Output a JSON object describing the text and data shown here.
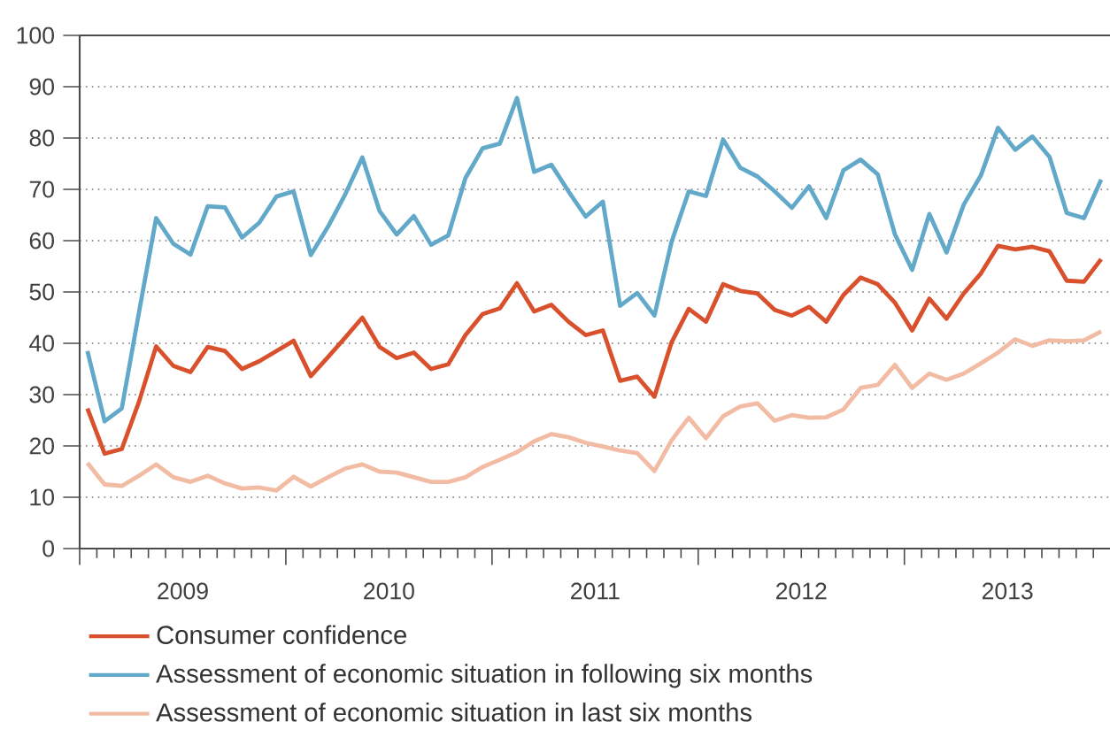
{
  "chart_data": {
    "type": "line",
    "x": [
      "2009-01-15",
      "2009-02-15",
      "2009-03-15",
      "2009-04-15",
      "2009-05-15",
      "2009-06-15",
      "2009-07-15",
      "2009-08-15",
      "2009-09-15",
      "2009-10-15",
      "2009-11-15",
      "2009-12-15",
      "2010-01-15",
      "2010-02-15",
      "2010-03-15",
      "2010-04-15",
      "2010-05-15",
      "2010-06-15",
      "2010-07-15",
      "2010-08-15",
      "2010-09-15",
      "2010-10-15",
      "2010-11-15",
      "2010-12-15",
      "2011-01-15",
      "2011-02-15",
      "2011-03-15",
      "2011-04-15",
      "2011-05-15",
      "2011-06-15",
      "2011-07-15",
      "2011-08-15",
      "2011-09-15",
      "2011-10-15",
      "2011-11-15",
      "2011-12-15",
      "2012-01-15",
      "2012-02-15",
      "2012-03-15",
      "2012-04-15",
      "2012-05-15",
      "2012-06-15",
      "2012-07-15",
      "2012-08-15",
      "2012-09-15",
      "2012-10-15",
      "2012-11-15",
      "2012-12-15",
      "2013-01-15",
      "2013-02-15",
      "2013-03-15",
      "2013-04-15",
      "2013-05-15",
      "2013-06-15",
      "2013-07-15",
      "2013-08-15",
      "2013-09-15",
      "2013-10-15",
      "2013-11-15",
      "2013-12-15"
    ],
    "series": [
      {
        "name": "Consumer confidence",
        "color": "#d9502c",
        "values": [
          27.3,
          18.5,
          19.4,
          28.6,
          39.4,
          35.6,
          34.4,
          39.3,
          38.5,
          35,
          36.5,
          38.5,
          40.5,
          33.6,
          37.3,
          41.1,
          45,
          39.3,
          37.1,
          38.2,
          35,
          35.9,
          41.6,
          45.7,
          46.8,
          51.7,
          46.2,
          47.5,
          44.2,
          41.6,
          42.5,
          32.7,
          33.5,
          29.6,
          40.2,
          46.7,
          44.2,
          51.5,
          50.2,
          49.7,
          46.5,
          45.4,
          47.1,
          44.2,
          49.4,
          52.8,
          51.5,
          47.9,
          42.5,
          48.7,
          44.8,
          49.7,
          53.6,
          59,
          58.3,
          58.8,
          57.9,
          52.2,
          52,
          56.4
        ]
      },
      {
        "name": "Assessment of economic situation in following six months",
        "color": "#62a9c9",
        "values": [
          38.5,
          24.8,
          27.3,
          46,
          64.4,
          59.4,
          57.3,
          66.7,
          66.5,
          60.6,
          63.5,
          68.6,
          69.6,
          57.2,
          62.7,
          69,
          76.2,
          65.8,
          61.2,
          64.8,
          59.2,
          61,
          72.2,
          78,
          78.9,
          87.8,
          73.4,
          74.8,
          69.6,
          64.7,
          67.6,
          47.3,
          49.8,
          45.4,
          59.8,
          69.6,
          68.7,
          79.7,
          74.2,
          72.5,
          69.6,
          66.4,
          70.6,
          64.4,
          73.7,
          75.8,
          72.9,
          61.2,
          54.3,
          65.2,
          57.7,
          67,
          72.7,
          82,
          77.7,
          80.3,
          76.3,
          65.4,
          64.4,
          71.9
        ]
      },
      {
        "name": "Assessment of economic situation in last six months",
        "color": "#f2bba3",
        "values": [
          16.7,
          12.5,
          12.2,
          14.2,
          16.4,
          13.9,
          13,
          14.2,
          12.7,
          11.7,
          11.9,
          11.3,
          14,
          12.1,
          13.9,
          15.6,
          16.4,
          15,
          14.8,
          13.9,
          13,
          13,
          13.9,
          15.9,
          17.3,
          18.8,
          20.9,
          22.3,
          21.7,
          20.6,
          19.9,
          19.1,
          18.6,
          15.1,
          21.1,
          25.5,
          21.5,
          25.8,
          27.7,
          28.3,
          24.9,
          26,
          25.5,
          25.6,
          27.1,
          31.3,
          31.9,
          35.8,
          31.3,
          34.1,
          32.9,
          34.1,
          36.1,
          38.2,
          40.8,
          39.5,
          40.6,
          40.4,
          40.6,
          42.3
        ]
      }
    ],
    "xlim": [
      "2009-01-01",
      "2013-12-31"
    ],
    "xticks": [
      {
        "value": "2009-01-01",
        "label": null
      },
      {
        "value": "2009-07-01",
        "label": "2009"
      },
      {
        "value": "2010-01-01",
        "label": null
      },
      {
        "value": "2010-07-01",
        "label": "2010"
      },
      {
        "value": "2011-01-01",
        "label": null
      },
      {
        "value": "2011-07-01",
        "label": "2011"
      },
      {
        "value": "2012-01-01",
        "label": null
      },
      {
        "value": "2012-07-01",
        "label": "2012"
      },
      {
        "value": "2013-01-01",
        "label": null
      },
      {
        "value": "2013-07-01",
        "label": "2013"
      }
    ],
    "ylim": [
      0,
      100
    ],
    "yticks": [
      0,
      10,
      20,
      30,
      40,
      50,
      60,
      70,
      80,
      90,
      100
    ],
    "grid": "y",
    "legend": "bottom",
    "line_style": "solid",
    "marker": "none"
  }
}
